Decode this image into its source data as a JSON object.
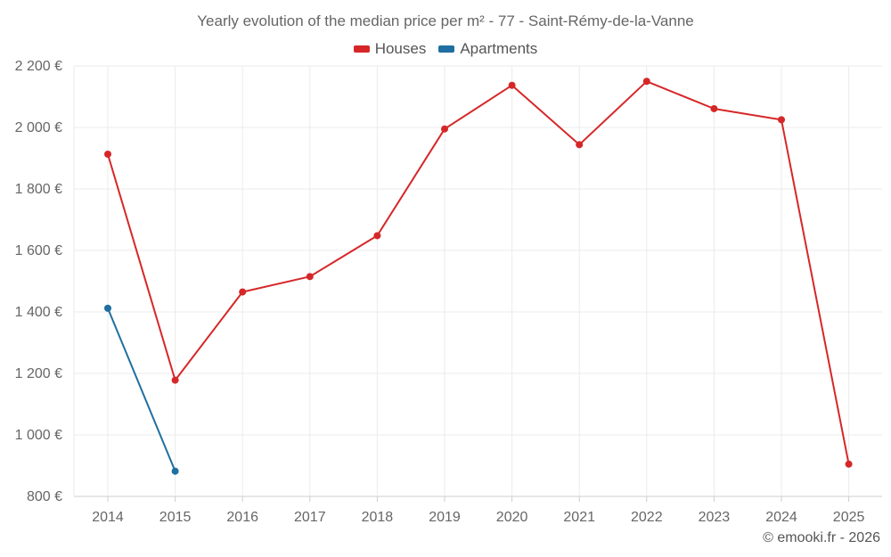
{
  "chart_data": {
    "type": "line",
    "title": "Yearly evolution of the median price per m² - 77 - Saint-Rémy-de-la-Vanne",
    "categories": [
      "2014",
      "2015",
      "2016",
      "2017",
      "2018",
      "2019",
      "2020",
      "2021",
      "2022",
      "2023",
      "2024",
      "2025"
    ],
    "series": [
      {
        "name": "Houses",
        "color": "#d62728",
        "values": [
          1913,
          1178,
          1465,
          1515,
          1648,
          1995,
          2137,
          1944,
          2150,
          2061,
          2025,
          905
        ]
      },
      {
        "name": "Apartments",
        "color": "#1f6fa0",
        "values": [
          1412,
          882,
          null,
          null,
          null,
          null,
          null,
          null,
          null,
          null,
          null,
          null
        ]
      }
    ],
    "y_ticks": [
      800,
      1000,
      1200,
      1400,
      1600,
      1800,
      2000,
      2200
    ],
    "y_tick_labels": [
      "800 €",
      "1 000 €",
      "1 200 €",
      "1 400 €",
      "1 600 €",
      "1 800 €",
      "2 000 €",
      "2 200 €"
    ],
    "ylim": [
      800,
      2200
    ],
    "xlabel": "",
    "ylabel": "",
    "grid": true,
    "legend_position": "top-center"
  },
  "credit": "© emooki.fr - 2026"
}
